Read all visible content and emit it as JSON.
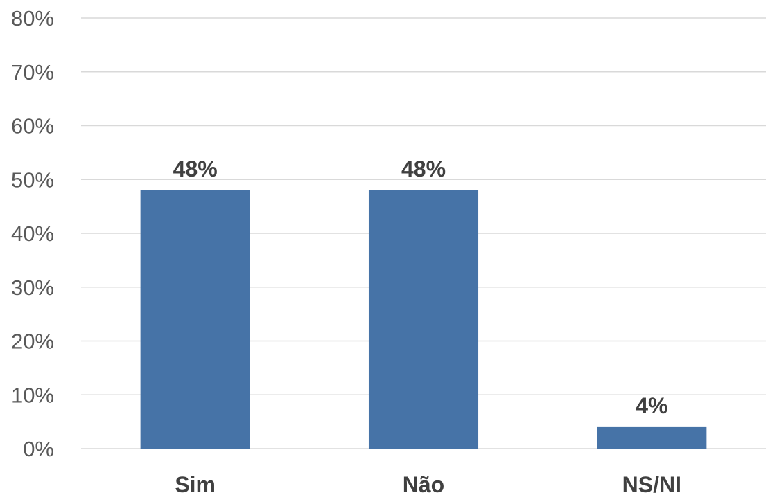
{
  "chart_data": {
    "type": "bar",
    "categories": [
      "Sim",
      "Não",
      "NS/NI"
    ],
    "values": [
      48,
      48,
      4
    ],
    "data_labels": [
      "48%",
      "48%",
      "4%"
    ],
    "ylim": [
      0,
      80
    ],
    "y_ticks": [
      0,
      10,
      20,
      30,
      40,
      50,
      60,
      70,
      80
    ],
    "y_tick_labels": [
      "0%",
      "10%",
      "20%",
      "30%",
      "40%",
      "50%",
      "60%",
      "70%",
      "80%"
    ],
    "grid": true,
    "legend": "none",
    "colors": {
      "bar": "#4673a7",
      "grid": "#d9d9d9",
      "tick_text": "#595959",
      "label_text": "#404040"
    }
  }
}
